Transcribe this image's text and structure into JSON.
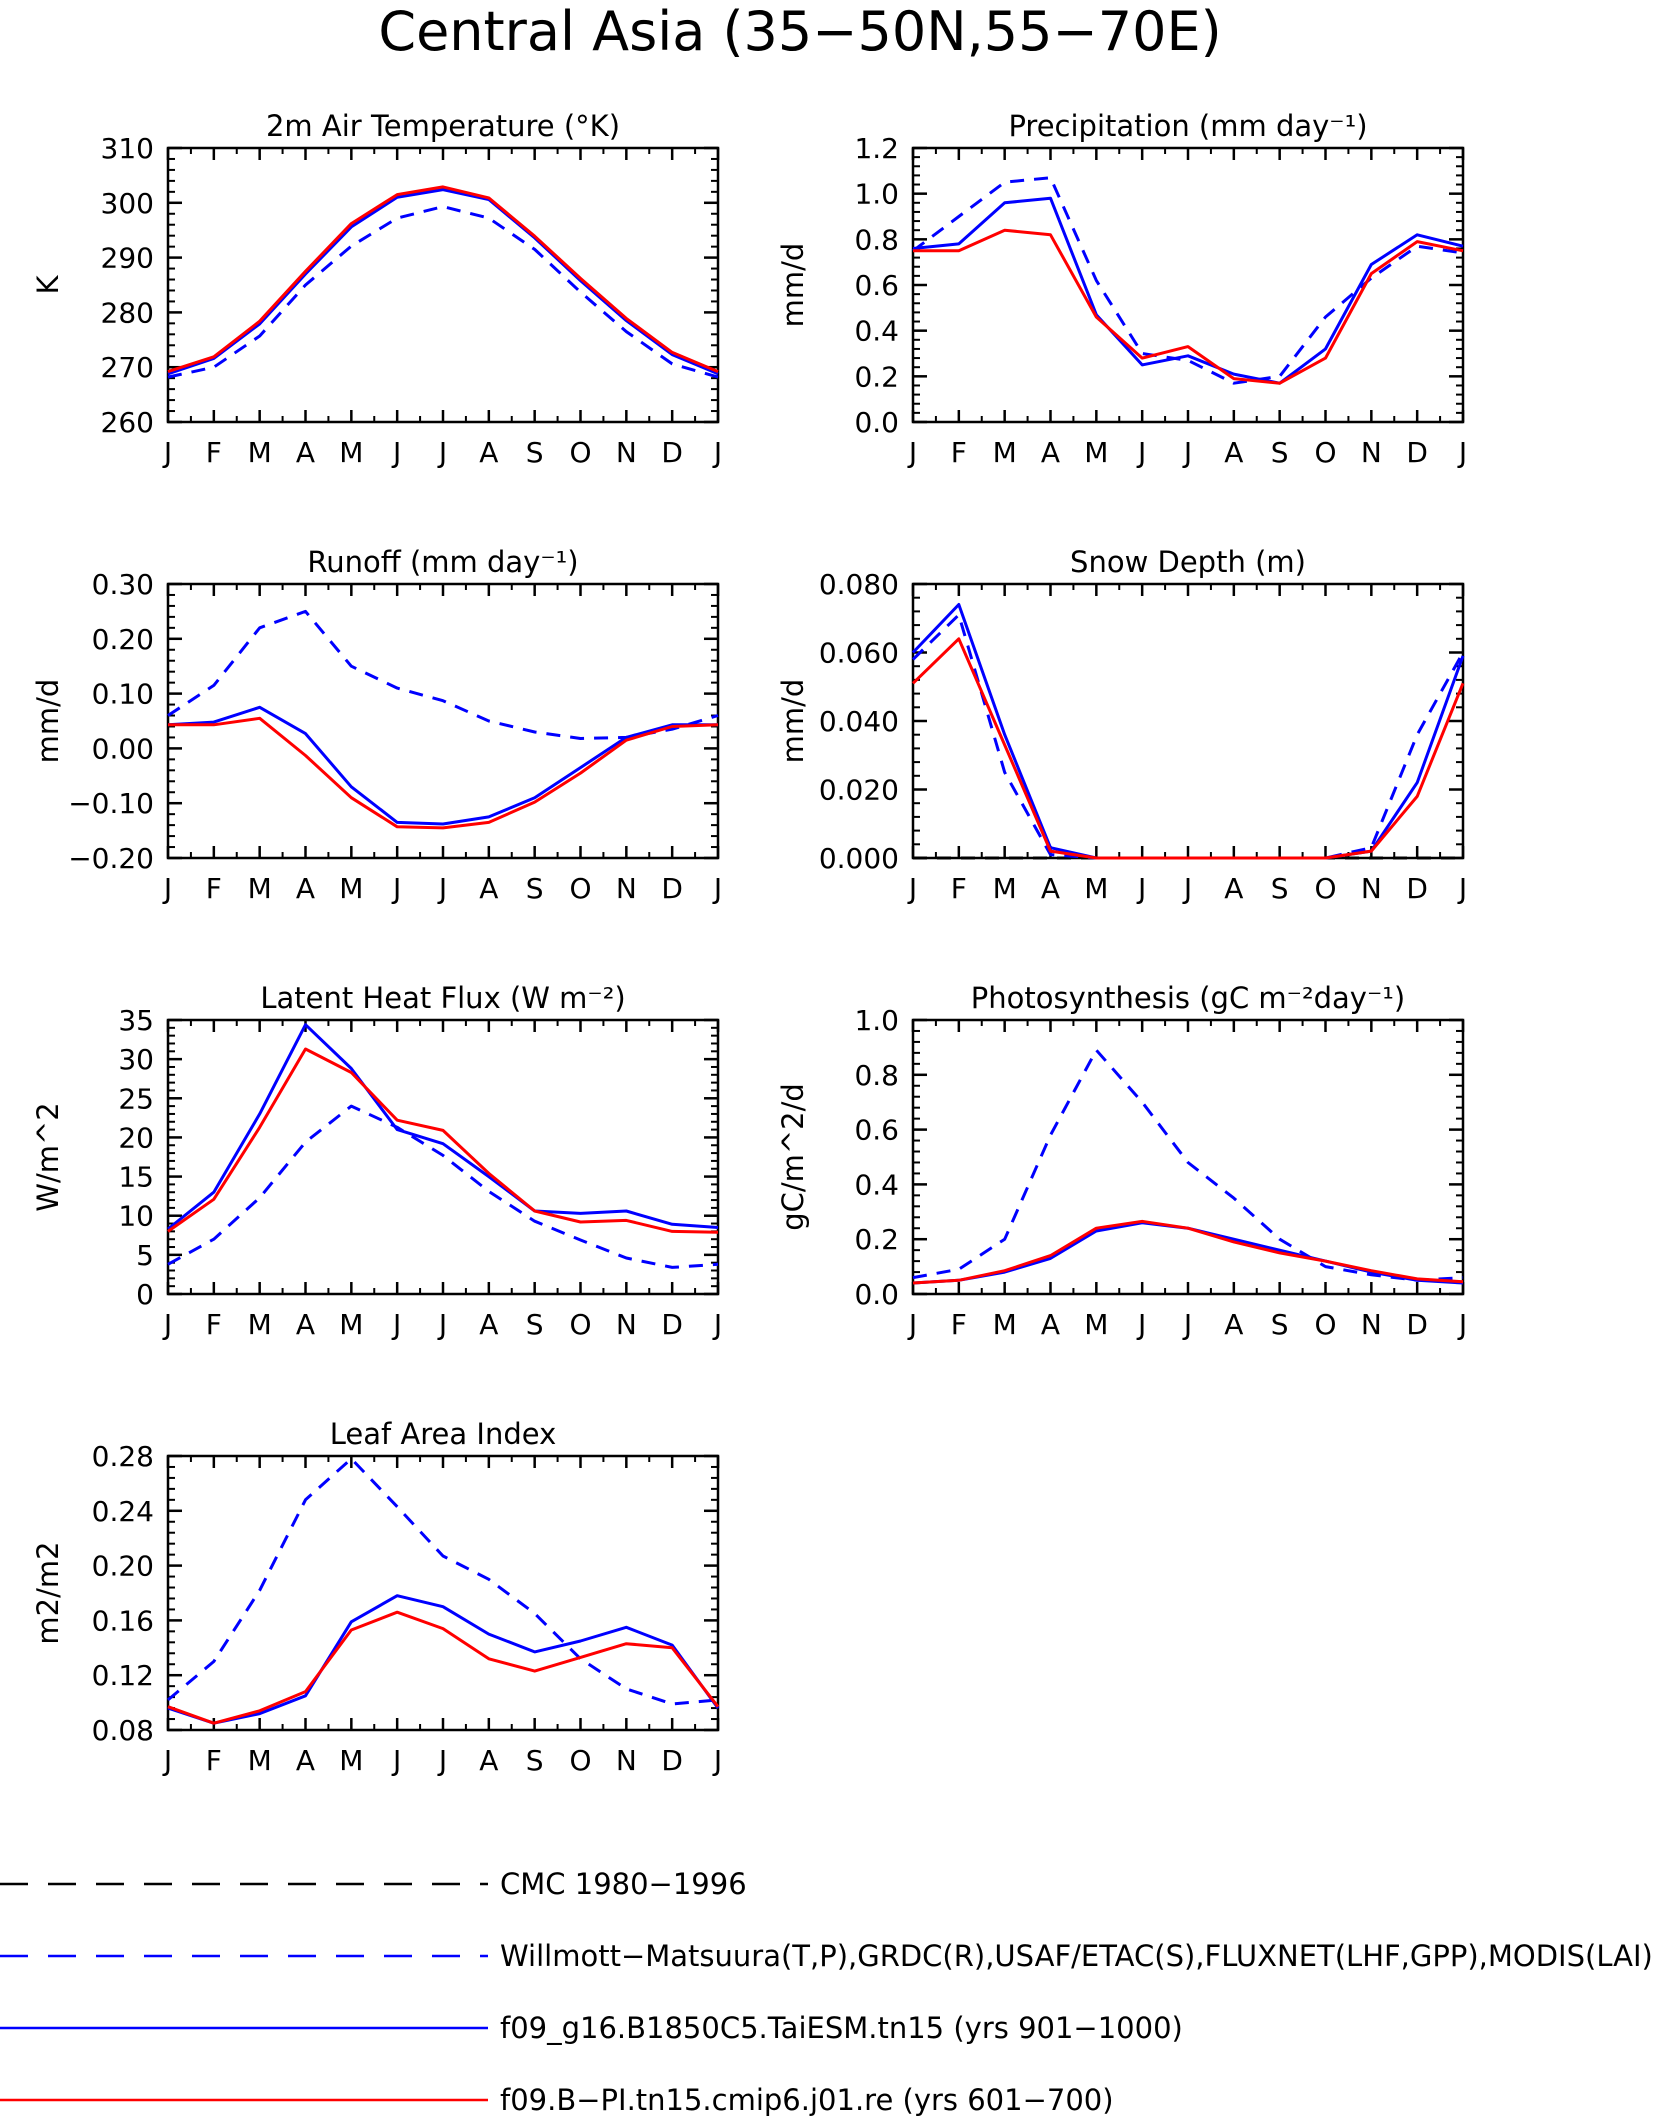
{
  "page_title": "Central Asia (35−50N,55−70E)",
  "months": [
    "J",
    "F",
    "M",
    "A",
    "M",
    "J",
    "J",
    "A",
    "S",
    "O",
    "N",
    "D",
    "J"
  ],
  "colors": {
    "axis": "#000000",
    "blue": "#0000ff",
    "red": "#ff0000",
    "black": "#000000"
  },
  "chart_data": [
    {
      "type": "line",
      "title": "2m Air Temperature (°K)",
      "ylabel": "K",
      "ylim": [
        260,
        310
      ],
      "yticks": [
        "310",
        "300",
        "290",
        "280",
        "270",
        "260"
      ],
      "series": [
        {
          "style": "dashed",
          "color": "blue",
          "values": [
            268.2,
            270.0,
            275.7,
            285.0,
            292.1,
            297.2,
            299.3,
            297.2,
            291.5,
            283.7,
            276.5,
            270.6,
            268.2
          ]
        },
        {
          "style": "solid",
          "color": "blue",
          "values": [
            268.8,
            271.6,
            277.9,
            287.0,
            295.6,
            301.0,
            302.4,
            300.6,
            293.6,
            285.8,
            278.5,
            272.3,
            268.8
          ]
        },
        {
          "style": "solid",
          "color": "red",
          "values": [
            269.2,
            271.9,
            278.4,
            287.5,
            296.2,
            301.5,
            302.9,
            300.9,
            293.9,
            286.2,
            278.9,
            272.7,
            269.2
          ]
        }
      ]
    },
    {
      "type": "line",
      "title": "Precipitation (mm day⁻¹)",
      "ylabel": "mm/d",
      "ylim": [
        0,
        1.2
      ],
      "yticks": [
        "1.2",
        "1.0",
        "0.8",
        "0.6",
        "0.4",
        "0.2",
        "0.0"
      ],
      "series": [
        {
          "style": "dashed",
          "color": "blue",
          "values": [
            0.75,
            0.9,
            1.05,
            1.07,
            0.62,
            0.3,
            0.27,
            0.17,
            0.2,
            0.46,
            0.63,
            0.77,
            0.74
          ]
        },
        {
          "style": "solid",
          "color": "blue",
          "values": [
            0.76,
            0.78,
            0.96,
            0.98,
            0.47,
            0.25,
            0.29,
            0.21,
            0.17,
            0.32,
            0.69,
            0.82,
            0.77
          ]
        },
        {
          "style": "solid",
          "color": "red",
          "values": [
            0.75,
            0.75,
            0.84,
            0.82,
            0.46,
            0.28,
            0.33,
            0.19,
            0.17,
            0.28,
            0.65,
            0.79,
            0.75
          ]
        }
      ]
    },
    {
      "type": "line",
      "title": "Runoff (mm day⁻¹)",
      "ylabel": "mm/d",
      "ylim": [
        -0.2,
        0.3
      ],
      "yticks": [
        "0.30",
        "0.20",
        "0.10",
        "0.00",
        "−0.10",
        "−0.20"
      ],
      "series": [
        {
          "style": "dashed",
          "color": "blue",
          "values": [
            0.06,
            0.115,
            0.22,
            0.25,
            0.15,
            0.11,
            0.087,
            0.05,
            0.03,
            0.018,
            0.02,
            0.035,
            0.06
          ]
        },
        {
          "style": "solid",
          "color": "blue",
          "values": [
            0.043,
            0.048,
            0.075,
            0.027,
            -0.07,
            -0.135,
            -0.138,
            -0.125,
            -0.09,
            -0.035,
            0.02,
            0.043,
            0.043
          ]
        },
        {
          "style": "solid",
          "color": "red",
          "values": [
            0.043,
            0.043,
            0.055,
            -0.013,
            -0.09,
            -0.143,
            -0.145,
            -0.135,
            -0.098,
            -0.045,
            0.015,
            0.04,
            0.043
          ]
        }
      ]
    },
    {
      "type": "line",
      "title": "Snow Depth (m)",
      "ylabel": "mm/d",
      "ylim": [
        0,
        0.08
      ],
      "yticks": [
        "0.080",
        "0.060",
        "0.040",
        "0.020",
        "0.000"
      ],
      "series": [
        {
          "style": "dashed",
          "color": "black",
          "values": [
            0,
            0,
            0,
            0,
            0,
            0,
            0,
            0,
            0,
            0,
            0,
            0,
            0
          ]
        },
        {
          "style": "dashed",
          "color": "blue",
          "values": [
            0.058,
            0.071,
            0.025,
            0.001,
            0,
            0,
            0,
            0,
            0,
            0,
            0.003,
            0.036,
            0.06
          ]
        },
        {
          "style": "solid",
          "color": "blue",
          "values": [
            0.06,
            0.074,
            0.036,
            0.003,
            0,
            0,
            0,
            0,
            0,
            0,
            0.002,
            0.022,
            0.059
          ]
        },
        {
          "style": "solid",
          "color": "red",
          "values": [
            0.051,
            0.064,
            0.033,
            0.002,
            0,
            0,
            0,
            0,
            0,
            0,
            0.002,
            0.018,
            0.051
          ]
        }
      ]
    },
    {
      "type": "line",
      "title": "Latent Heat Flux (W m⁻²)",
      "ylabel": "W/m^2",
      "ylim": [
        0,
        35
      ],
      "yticks": [
        "35",
        "30",
        "25",
        "20",
        "15",
        "10",
        "5",
        "0"
      ],
      "series": [
        {
          "style": "dashed",
          "color": "blue",
          "values": [
            3.8,
            7.0,
            12.3,
            19.4,
            24.0,
            21.3,
            17.7,
            13.1,
            9.3,
            6.9,
            4.6,
            3.4,
            3.8
          ]
        },
        {
          "style": "solid",
          "color": "blue",
          "values": [
            8.3,
            13.0,
            23.0,
            34.4,
            28.8,
            21.0,
            19.2,
            15.0,
            10.6,
            10.3,
            10.6,
            8.9,
            8.5
          ]
        },
        {
          "style": "solid",
          "color": "red",
          "values": [
            8.0,
            12.1,
            21.3,
            31.3,
            28.3,
            22.2,
            20.9,
            15.4,
            10.6,
            9.2,
            9.4,
            8.0,
            7.9
          ]
        }
      ]
    },
    {
      "type": "line",
      "title": "Photosynthesis (gC m⁻²day⁻¹)",
      "ylabel": "gC/m^2/d",
      "ylim": [
        0,
        1.0
      ],
      "yticks": [
        "1.0",
        "0.8",
        "0.6",
        "0.4",
        "0.2",
        "0.0"
      ],
      "series": [
        {
          "style": "dashed",
          "color": "blue",
          "values": [
            0.06,
            0.09,
            0.2,
            0.58,
            0.89,
            0.7,
            0.48,
            0.35,
            0.2,
            0.1,
            0.07,
            0.05,
            0.06
          ]
        },
        {
          "style": "solid",
          "color": "blue",
          "values": [
            0.04,
            0.05,
            0.08,
            0.13,
            0.23,
            0.26,
            0.24,
            0.2,
            0.16,
            0.12,
            0.08,
            0.05,
            0.04
          ]
        },
        {
          "style": "solid",
          "color": "red",
          "values": [
            0.04,
            0.05,
            0.085,
            0.14,
            0.24,
            0.265,
            0.24,
            0.19,
            0.15,
            0.12,
            0.085,
            0.055,
            0.045
          ]
        }
      ]
    },
    {
      "type": "line",
      "title": "Leaf Area Index",
      "ylabel": "m2/m2",
      "ylim": [
        0.08,
        0.28
      ],
      "yticks": [
        "0.28",
        "0.24",
        "0.20",
        "0.16",
        "0.12",
        "0.08"
      ],
      "series": [
        {
          "style": "dashed",
          "color": "blue",
          "values": [
            0.102,
            0.13,
            0.182,
            0.248,
            0.278,
            0.243,
            0.207,
            0.19,
            0.165,
            0.132,
            0.11,
            0.099,
            0.102
          ]
        },
        {
          "style": "solid",
          "color": "blue",
          "values": [
            0.096,
            0.085,
            0.092,
            0.105,
            0.159,
            0.178,
            0.17,
            0.15,
            0.137,
            0.145,
            0.155,
            0.142,
            0.096
          ]
        },
        {
          "style": "solid",
          "color": "red",
          "values": [
            0.097,
            0.085,
            0.094,
            0.108,
            0.153,
            0.166,
            0.154,
            0.132,
            0.123,
            0.133,
            0.143,
            0.14,
            0.097
          ]
        }
      ]
    }
  ],
  "legend": [
    {
      "style": "dashed-long",
      "color": "black",
      "label": "CMC 1980−1996"
    },
    {
      "style": "dashed-long",
      "color": "blue",
      "label": "Willmott−Matsuura(T,P),GRDC(R),USAF/ETAC(S),FLUXNET(LHF,GPP),MODIS(LAI)"
    },
    {
      "style": "solid",
      "color": "blue",
      "label": "f09_g16.B1850C5.TaiESM.tn15 (yrs 901−1000)"
    },
    {
      "style": "solid",
      "color": "red",
      "label": "f09.B−PI.tn15.cmip6.j01.re (yrs 601−700)"
    }
  ]
}
